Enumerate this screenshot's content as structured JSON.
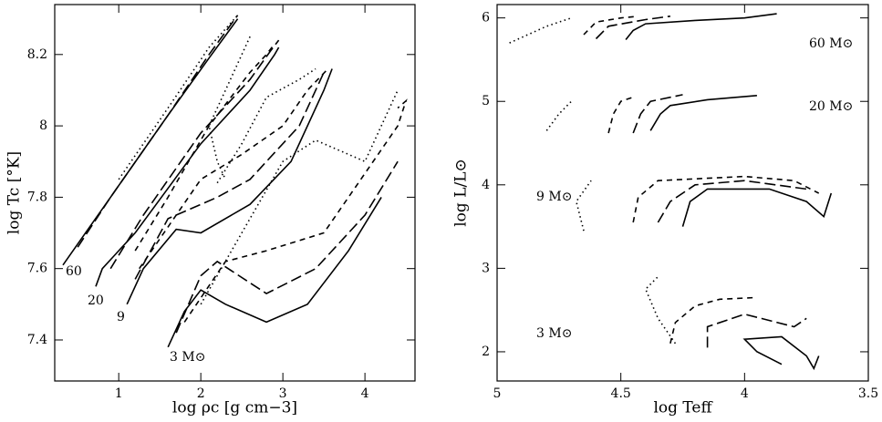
{
  "chart_data": [
    {
      "type": "line",
      "xlabel": "log ρc [g cm−3]",
      "ylabel": "log Tc [°K]",
      "xlim": [
        0.22,
        4.61
      ],
      "ylim": [
        7.285,
        8.34
      ],
      "xticks": [
        1,
        2,
        3,
        4
      ],
      "yticks": [
        7.4,
        7.6,
        7.8,
        8,
        8.2
      ],
      "annotations": [
        "60",
        "20",
        "9",
        "3 M⊙"
      ],
      "series": [
        {
          "color": "#000000",
          "dash": "solid",
          "x": [
            0.32,
            0.9,
            1.6,
            2.1,
            2.45
          ],
          "values": [
            7.61,
            7.8,
            8.03,
            8.19,
            8.3
          ]
        },
        {
          "color": "#000000",
          "dash": "long",
          "x": [
            0.5,
            0.9,
            1.6,
            2.1,
            2.45
          ],
          "values": [
            7.66,
            7.8,
            8.03,
            8.2,
            8.31
          ]
        },
        {
          "color": "#000000",
          "dotted": true,
          "dash": "dotted",
          "x": [
            1.0,
            1.6,
            2.1,
            2.45
          ],
          "values": [
            7.85,
            8.05,
            8.22,
            8.31
          ]
        },
        {
          "color": "#000000",
          "dash": "solid",
          "x": [
            0.72,
            0.8,
            1.2,
            2.0,
            2.6,
            2.9,
            2.95
          ],
          "values": [
            7.55,
            7.6,
            7.7,
            7.95,
            8.1,
            8.2,
            8.22
          ]
        },
        {
          "color": "#000000",
          "dash": "long",
          "x": [
            0.9,
            1.3,
            2.0,
            2.6,
            2.85,
            2.95
          ],
          "values": [
            7.6,
            7.75,
            7.98,
            8.13,
            8.21,
            8.24
          ]
        },
        {
          "color": "#000000",
          "dash": "short",
          "x": [
            1.2,
            1.6,
            2.1,
            2.6,
            2.8,
            2.9
          ],
          "values": [
            7.65,
            7.8,
            8.0,
            8.15,
            8.2,
            8.23
          ]
        },
        {
          "color": "#000000",
          "dash": "dotted",
          "x": [
            2.6,
            2.3,
            2.1,
            2.2,
            2.3
          ],
          "values": [
            8.25,
            8.1,
            8.0,
            7.9,
            7.85
          ]
        },
        {
          "color": "#000000",
          "dash": "solid",
          "x": [
            1.1,
            1.3,
            1.7,
            2.0,
            2.6,
            3.1,
            3.5,
            3.6
          ],
          "values": [
            7.5,
            7.6,
            7.71,
            7.7,
            7.78,
            7.9,
            8.1,
            8.16
          ]
        },
        {
          "color": "#000000",
          "dash": "long",
          "x": [
            1.2,
            1.6,
            2.2,
            2.6,
            3.2,
            3.5
          ],
          "values": [
            7.57,
            7.74,
            7.8,
            7.85,
            8.0,
            8.15
          ]
        },
        {
          "color": "#000000",
          "dash": "short",
          "x": [
            1.25,
            2.0,
            2.5,
            3.0,
            3.3,
            3.55
          ],
          "values": [
            7.6,
            7.85,
            7.92,
            8.0,
            8.1,
            8.16
          ]
        },
        {
          "color": "#000000",
          "dash": "dotted",
          "x": [
            2.2,
            2.5,
            2.8,
            3.2,
            3.4
          ],
          "values": [
            7.84,
            7.95,
            8.08,
            8.13,
            8.16
          ]
        },
        {
          "color": "#000000",
          "dash": "solid",
          "x": [
            1.6,
            1.8,
            2.0,
            2.3,
            2.8,
            3.3,
            3.8,
            4.2
          ],
          "values": [
            7.38,
            7.48,
            7.54,
            7.5,
            7.45,
            7.5,
            7.65,
            7.8
          ]
        },
        {
          "color": "#000000",
          "dash": "long",
          "x": [
            1.7,
            2.0,
            2.2,
            2.8,
            3.4,
            4.0,
            4.4
          ],
          "values": [
            7.42,
            7.58,
            7.62,
            7.53,
            7.6,
            7.75,
            7.9
          ]
        },
        {
          "color": "#000000",
          "dash": "short",
          "x": [
            1.8,
            2.3,
            2.8,
            3.5,
            4.4,
            4.5,
            4.4
          ],
          "values": [
            7.45,
            7.62,
            7.65,
            7.7,
            8.0,
            8.07,
            8.05
          ]
        },
        {
          "color": "#000000",
          "dash": "dotted",
          "x": [
            2.0,
            2.5,
            3.0,
            3.4,
            4.0,
            4.3,
            4.4
          ],
          "values": [
            7.5,
            7.7,
            7.9,
            7.96,
            7.9,
            8.05,
            8.1
          ]
        }
      ]
    },
    {
      "type": "line",
      "xlabel": "log Teff",
      "ylabel": "log L/L⊙",
      "xlim": [
        5,
        3.5
      ],
      "ylim": [
        1.65,
        6.16
      ],
      "xticks": [
        5,
        4.5,
        4,
        3.5
      ],
      "yticks": [
        2,
        3,
        4,
        5,
        6
      ],
      "annotations": [
        "60 M⊙",
        "20 M⊙",
        "9 M⊙",
        "3 M⊙"
      ],
      "series": [
        {
          "color": "#000000",
          "dash": "solid",
          "x": [
            4.48,
            4.45,
            4.4,
            4.2,
            4.0,
            3.87
          ],
          "values": [
            5.74,
            5.85,
            5.93,
            5.97,
            6.0,
            6.05
          ]
        },
        {
          "color": "#000000",
          "dash": "long",
          "x": [
            4.6,
            4.55,
            4.4,
            4.3
          ],
          "values": [
            5.75,
            5.9,
            5.98,
            6.02
          ]
        },
        {
          "color": "#000000",
          "dash": "short",
          "x": [
            4.65,
            4.6,
            4.5,
            4.43
          ],
          "values": [
            5.8,
            5.95,
            6.0,
            6.02
          ]
        },
        {
          "color": "#000000",
          "dash": "dotted",
          "x": [
            4.95,
            4.8,
            4.7
          ],
          "values": [
            5.7,
            5.9,
            6.0
          ]
        },
        {
          "color": "#000000",
          "dash": "solid",
          "x": [
            4.38,
            4.34,
            4.3,
            4.15,
            3.95
          ],
          "values": [
            4.65,
            4.85,
            4.95,
            5.02,
            5.07
          ]
        },
        {
          "color": "#000000",
          "dash": "long",
          "x": [
            4.45,
            4.42,
            4.38,
            4.25
          ],
          "values": [
            4.62,
            4.85,
            5.0,
            5.08
          ]
        },
        {
          "color": "#000000",
          "dash": "short",
          "x": [
            4.55,
            4.53,
            4.5,
            4.45
          ],
          "values": [
            4.62,
            4.85,
            5.0,
            5.05
          ]
        },
        {
          "color": "#000000",
          "dash": "dotted",
          "x": [
            4.8,
            4.75,
            4.7
          ],
          "values": [
            4.65,
            4.85,
            5.0
          ]
        },
        {
          "color": "#000000",
          "dash": "solid",
          "x": [
            4.25,
            4.22,
            4.15,
            3.9,
            3.75,
            3.68,
            3.65
          ],
          "values": [
            3.5,
            3.8,
            3.95,
            3.95,
            3.8,
            3.62,
            3.9
          ]
        },
        {
          "color": "#000000",
          "dash": "long",
          "x": [
            4.35,
            4.3,
            4.2,
            4.0,
            3.75
          ],
          "values": [
            3.55,
            3.8,
            4.0,
            4.05,
            3.95
          ]
        },
        {
          "color": "#000000",
          "dash": "short",
          "x": [
            4.45,
            4.43,
            4.35,
            4.0,
            3.8,
            3.7
          ],
          "values": [
            3.55,
            3.85,
            4.05,
            4.1,
            4.05,
            3.9
          ]
        },
        {
          "color": "#000000",
          "dash": "dotted",
          "x": [
            4.65,
            4.68,
            4.62
          ],
          "values": [
            3.45,
            3.8,
            4.05
          ]
        },
        {
          "color": "#000000",
          "dash": "solid",
          "x": [
            3.85,
            3.95,
            4.0,
            3.85,
            3.75,
            3.72,
            3.7
          ],
          "values": [
            1.85,
            2.0,
            2.15,
            2.18,
            1.95,
            1.8,
            1.95
          ]
        },
        {
          "color": "#000000",
          "dash": "long",
          "x": [
            4.15,
            4.15,
            4.0,
            3.8,
            3.75
          ],
          "values": [
            2.05,
            2.3,
            2.45,
            2.3,
            2.4
          ]
        },
        {
          "color": "#000000",
          "dash": "short",
          "x": [
            4.3,
            4.28,
            4.2,
            4.1,
            3.95
          ],
          "values": [
            2.1,
            2.35,
            2.55,
            2.63,
            2.65
          ]
        },
        {
          "color": "#000000",
          "dash": "dotted",
          "x": [
            4.28,
            4.35,
            4.4,
            4.35
          ],
          "values": [
            2.1,
            2.4,
            2.75,
            2.9
          ]
        }
      ]
    }
  ]
}
